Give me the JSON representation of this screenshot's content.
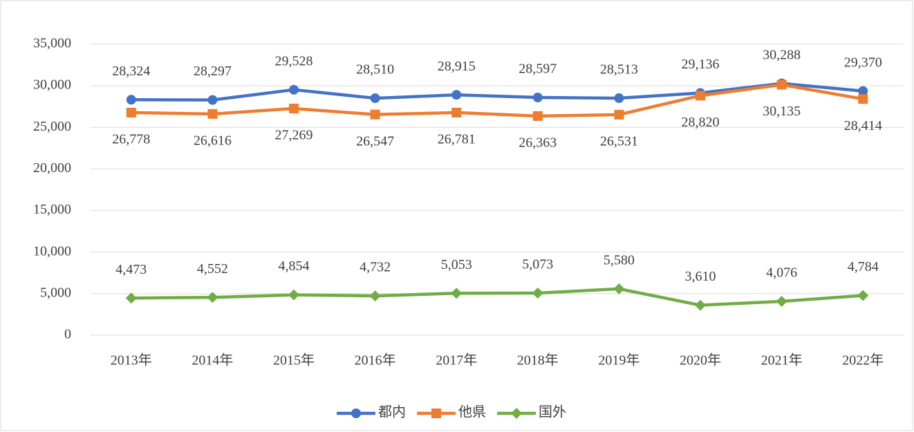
{
  "chart_data": {
    "type": "line",
    "categories": [
      "2013年",
      "2014年",
      "2015年",
      "2016年",
      "2017年",
      "2018年",
      "2019年",
      "2020年",
      "2021年",
      "2022年"
    ],
    "series": [
      {
        "name": "都内",
        "color": "#4472c4",
        "marker": "circle",
        "label_side": "above",
        "values": [
          28324,
          28297,
          29528,
          28510,
          28915,
          28597,
          28513,
          29136,
          30288,
          29370
        ],
        "value_labels": [
          "28,324",
          "28,297",
          "29,528",
          "28,510",
          "28,915",
          "28,597",
          "28,513",
          "29,136",
          "30,288",
          "29,370"
        ]
      },
      {
        "name": "他県",
        "color": "#ed7d31",
        "marker": "square",
        "label_side": "below",
        "values": [
          26778,
          26616,
          27269,
          26547,
          26781,
          26363,
          26531,
          28820,
          30135,
          28414
        ],
        "value_labels": [
          "26,778",
          "26,616",
          "27,269",
          "26,547",
          "26,781",
          "26,363",
          "26,531",
          "28,820",
          "30,135",
          "28,414"
        ]
      },
      {
        "name": "国外",
        "color": "#70ad47",
        "marker": "diamond",
        "label_side": "above",
        "values": [
          4473,
          4552,
          4854,
          4732,
          5053,
          5073,
          5580,
          3610,
          4076,
          4784
        ],
        "value_labels": [
          "4,473",
          "4,552",
          "4,854",
          "4,732",
          "5,053",
          "5,073",
          "5,580",
          "3,610",
          "4,076",
          "4,784"
        ]
      }
    ],
    "ylim": [
      0,
      35000
    ],
    "yticks": [
      0,
      {
        "value": 5000,
        "label": "5,000"
      },
      {
        "value": 10000,
        "label": "10,000"
      },
      {
        "value": 15000,
        "label": "15,000"
      },
      {
        "value": 20000,
        "label": "20,000"
      },
      {
        "value": 25000,
        "label": "25,000"
      },
      {
        "value": 30000,
        "label": "30,000"
      },
      {
        "value": 35000,
        "label": "35,000"
      }
    ],
    "grid": true,
    "legend": "bottom"
  }
}
